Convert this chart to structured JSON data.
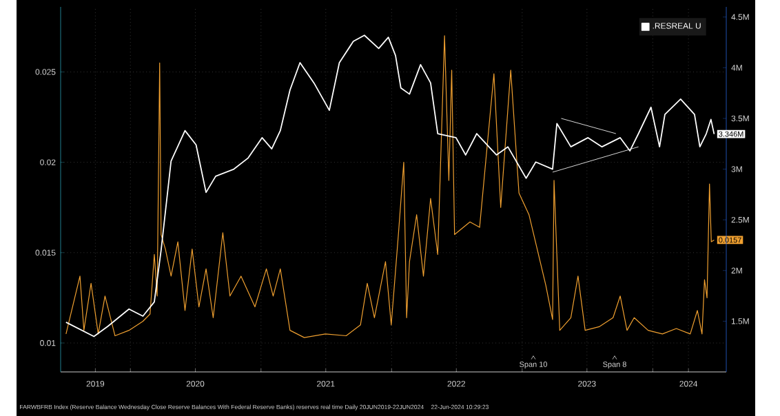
{
  "chart_data": {
    "type": "line",
    "xlim": [
      "2019-06-20",
      "2024-07-25"
    ],
    "xticks": [
      {
        "value": "2019-09-25",
        "label": "2019"
      },
      {
        "value": "2020-01-01",
        "label": null
      },
      {
        "value": "2020-07-01",
        "label": "2020"
      },
      {
        "value": "2021-01-01",
        "label": null
      },
      {
        "value": "2021-07-01",
        "label": "2021"
      },
      {
        "value": "2022-01-01",
        "label": null
      },
      {
        "value": "2022-07-01",
        "label": "2022"
      },
      {
        "value": "2023-01-01",
        "label": null
      },
      {
        "value": "2023-07-01",
        "label": "2023"
      },
      {
        "value": "2024-01-01",
        "label": null
      },
      {
        "value": "2024-04-10",
        "label": "2024"
      }
    ],
    "ylim": [
      0.0084,
      0.0286
    ],
    "yticks": [
      0.01,
      0.015,
      0.02,
      0.025
    ],
    "y2lim": [
      1.0,
      4.6
    ],
    "y2ticks": [
      {
        "value": 1.5,
        "label": "1.5M"
      },
      {
        "value": 2,
        "label": "2M"
      },
      {
        "value": 2.5,
        "label": "2.5M"
      },
      {
        "value": 3,
        "label": "3M"
      },
      {
        "value": 3.5,
        "label": "3.5M"
      },
      {
        "value": 4,
        "label": "4M"
      },
      {
        "value": 4.5,
        "label": "4.5M"
      }
    ],
    "grid": true,
    "legend": "top right",
    "marker": "none",
    "line_style": "solid",
    "series": [
      {
        "name": ".RESREAL U",
        "color": "#ffffff",
        "axis": "y2",
        "x": [
          "2019-07-05",
          "2019-09-21",
          "2019-10-30",
          "2019-12-28",
          "2020-02-05",
          "2020-03-08",
          "2020-03-27",
          "2020-04-24",
          "2020-06-02",
          "2020-07-03",
          "2020-07-31",
          "2020-08-27",
          "2020-10-17",
          "2020-11-26",
          "2021-01-04",
          "2021-01-31",
          "2021-02-24",
          "2021-03-23",
          "2021-04-20",
          "2021-05-29",
          "2021-07-11",
          "2021-08-08",
          "2021-09-16",
          "2021-10-17",
          "2021-11-26",
          "2021-12-23",
          "2022-01-12",
          "2022-01-27",
          "2022-02-20",
          "2022-03-23",
          "2022-04-20",
          "2022-05-10",
          "2022-06-30",
          "2022-07-27",
          "2022-08-27",
          "2022-10-21",
          "2022-11-22",
          "2023-01-12",
          "2023-02-08",
          "2023-03-27",
          "2023-04-08",
          "2023-05-17",
          "2023-07-04",
          "2023-08-12",
          "2023-10-02",
          "2023-10-29",
          "2023-11-22",
          "2023-12-27",
          "2024-01-20",
          "2024-02-04",
          "2024-03-19",
          "2024-04-27",
          "2024-05-12",
          "2024-05-30",
          "2024-06-12",
          "2024-06-21"
        ],
        "values": [
          1.49,
          1.35,
          1.45,
          1.62,
          1.55,
          1.69,
          2.2,
          3.08,
          3.38,
          3.24,
          2.77,
          2.93,
          3.0,
          3.11,
          3.31,
          3.2,
          3.38,
          3.78,
          4.05,
          3.85,
          3.58,
          4.05,
          4.26,
          4.32,
          4.19,
          4.3,
          4.12,
          3.8,
          3.74,
          4.03,
          3.85,
          3.35,
          3.31,
          3.14,
          3.35,
          3.14,
          3.22,
          2.91,
          3.07,
          3.0,
          3.45,
          3.22,
          3.31,
          3.22,
          3.31,
          3.18,
          3.35,
          3.61,
          3.22,
          3.54,
          3.69,
          3.54,
          3.22,
          3.35,
          3.49,
          3.346
        ],
        "value_labels": [
          null,
          null,
          null,
          null,
          null,
          null,
          null,
          null,
          null,
          null,
          null,
          null,
          null,
          null,
          null,
          null,
          null,
          null,
          null,
          null,
          null,
          null,
          null,
          null,
          null,
          null,
          null,
          null,
          null,
          null,
          null,
          null,
          null,
          null,
          null,
          null,
          null,
          null,
          null,
          null,
          null,
          null,
          null,
          null,
          null,
          null,
          null,
          null,
          null,
          null,
          null,
          null,
          null,
          null,
          null,
          "3.346M"
        ]
      },
      {
        "color": "#f0a030",
        "axis": "y",
        "x": [
          "2019-07-05",
          "2019-08-13",
          "2019-08-24",
          "2019-09-13",
          "2019-10-03",
          "2019-10-22",
          "2019-11-19",
          "2019-12-28",
          "2020-02-05",
          "2020-02-25",
          "2020-03-08",
          "2020-03-16",
          "2020-03-23",
          "2020-03-27",
          "2020-04-08",
          "2020-04-24",
          "2020-05-13",
          "2020-06-02",
          "2020-06-22",
          "2020-07-11",
          "2020-07-31",
          "2020-08-20",
          "2020-09-16",
          "2020-10-06",
          "2020-11-06",
          "2020-12-15",
          "2021-01-16",
          "2021-02-04",
          "2021-02-24",
          "2021-03-23",
          "2021-05-02",
          "2021-06-30",
          "2021-08-27",
          "2021-10-06",
          "2021-10-25",
          "2021-11-14",
          "2021-12-15",
          "2021-12-31",
          "2022-01-20",
          "2022-02-04",
          "2022-02-12",
          "2022-02-20",
          "2022-03-12",
          "2022-03-31",
          "2022-04-20",
          "2022-05-10",
          "2022-05-29",
          "2022-06-10",
          "2022-06-18",
          "2022-06-26",
          "2022-08-08",
          "2022-09-04",
          "2022-10-14",
          "2022-11-02",
          "2022-11-30",
          "2022-12-23",
          "2023-01-20",
          "2023-03-08",
          "2023-03-27",
          "2023-03-31",
          "2023-04-16",
          "2023-05-17",
          "2023-06-06",
          "2023-06-26",
          "2023-08-04",
          "2023-09-12",
          "2023-10-02",
          "2023-10-21",
          "2023-11-10",
          "2023-12-19",
          "2024-01-28",
          "2024-03-07",
          "2024-04-15",
          "2024-05-05",
          "2024-05-18",
          "2024-05-25",
          "2024-06-01",
          "2024-06-08",
          "2024-06-13",
          "2024-06-21"
        ],
        "values": [
          0.0105,
          0.0137,
          0.0107,
          0.0133,
          0.0105,
          0.0126,
          0.0104,
          0.0107,
          0.0112,
          0.0116,
          0.0149,
          0.0126,
          0.0255,
          0.016,
          0.0152,
          0.0137,
          0.0156,
          0.0118,
          0.0152,
          0.012,
          0.0141,
          0.0114,
          0.0161,
          0.0126,
          0.0137,
          0.012,
          0.0141,
          0.0126,
          0.0141,
          0.0107,
          0.0103,
          0.0105,
          0.0104,
          0.011,
          0.0133,
          0.0114,
          0.0145,
          0.011,
          0.016,
          0.02,
          0.0114,
          0.0145,
          0.0171,
          0.0137,
          0.018,
          0.0149,
          0.027,
          0.019,
          0.0251,
          0.016,
          0.0167,
          0.0164,
          0.0249,
          0.0175,
          0.0251,
          0.0183,
          0.0171,
          0.0132,
          0.0113,
          0.019,
          0.0107,
          0.0114,
          0.0137,
          0.0107,
          0.0109,
          0.0114,
          0.0126,
          0.0107,
          0.0114,
          0.0107,
          0.0105,
          0.0108,
          0.0105,
          0.0118,
          0.0105,
          0.0135,
          0.0125,
          0.0188,
          0.0156,
          0.0157
        ],
        "value_labels": [
          null,
          null,
          null,
          null,
          null,
          null,
          null,
          null,
          null,
          null,
          null,
          null,
          null,
          null,
          null,
          null,
          null,
          null,
          null,
          null,
          null,
          null,
          null,
          null,
          null,
          null,
          null,
          null,
          null,
          null,
          null,
          null,
          null,
          null,
          null,
          null,
          null,
          null,
          null,
          null,
          null,
          null,
          null,
          null,
          null,
          null,
          null,
          null,
          null,
          null,
          null,
          null,
          null,
          null,
          null,
          null,
          null,
          null,
          null,
          null,
          null,
          null,
          null,
          null,
          null,
          null,
          null,
          null,
          null,
          null,
          null,
          null,
          null,
          null,
          null,
          null,
          null,
          null,
          null,
          "0.0157"
        ]
      },
      {
        "type": "line",
        "color": "#d8d8d8",
        "axis": "y2",
        "x": [
          "2023-04-20",
          "2023-09-20"
        ],
        "values": [
          3.5,
          3.35
        ]
      },
      {
        "type": "line",
        "color": "#d8d8d8",
        "axis": "y2",
        "x": [
          "2023-03-27",
          "2023-11-22"
        ],
        "values": [
          2.97,
          3.22
        ]
      }
    ],
    "annotations": [
      "Span 10",
      "Span 8",
      "FARWBFRB Index (Reserve Balance Wednesday Close Reserve Balances With Federal Reserve Banks) reserves real time  Daily 20JUN2019-22JUN2024",
      "22-Jun-2024 10:29:23"
    ]
  }
}
